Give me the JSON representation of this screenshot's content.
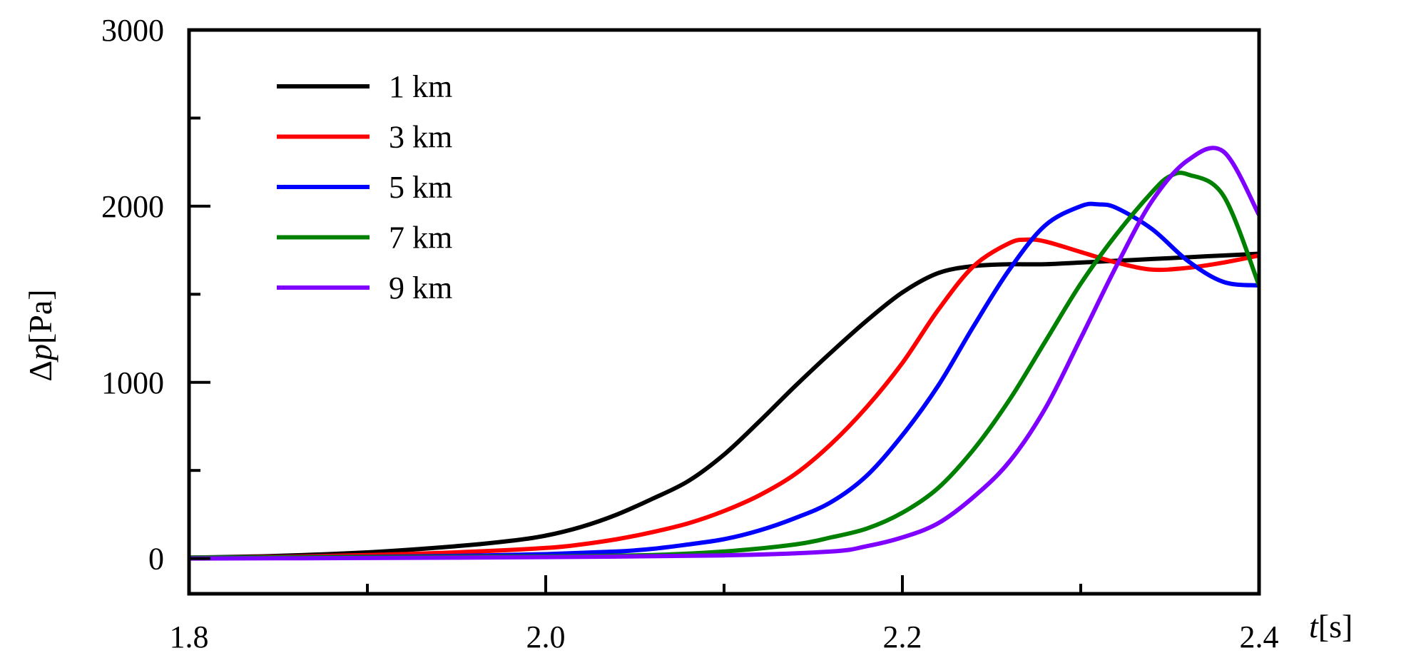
{
  "chart_data": {
    "type": "line",
    "title": "",
    "xlabel": {
      "symbol": "t",
      "unit": "[s]"
    },
    "ylabel": {
      "symbol": "p",
      "prefix": "Δ",
      "unit": "[Pa]"
    },
    "xlim": [
      1.8,
      2.4
    ],
    "ylim": [
      -200,
      3000
    ],
    "x_ticks": [
      {
        "value": 1.8,
        "label": "1.8"
      },
      {
        "value": 2.0,
        "label": "2.0"
      },
      {
        "value": 2.2,
        "label": "2.2"
      },
      {
        "value": 2.4,
        "label": "2.4"
      }
    ],
    "x_minor_ticks": [
      1.9,
      2.1,
      2.3
    ],
    "y_ticks": [
      {
        "value": 0,
        "label": "0"
      },
      {
        "value": 1000,
        "label": "1000"
      },
      {
        "value": 2000,
        "label": "2000"
      },
      {
        "value": 3000,
        "label": "3000"
      }
    ],
    "y_minor_ticks": [
      500,
      1500,
      2500
    ],
    "grid": false,
    "legend_position": "top-left",
    "series": [
      {
        "name": "1 km",
        "color": "#000000",
        "x": [
          1.8,
          1.85,
          1.9,
          1.95,
          1.98,
          2.0,
          2.02,
          2.04,
          2.06,
          2.08,
          2.1,
          2.12,
          2.14,
          2.16,
          2.18,
          2.2,
          2.22,
          2.24,
          2.26,
          2.28,
          2.3,
          2.32,
          2.34,
          2.36,
          2.38,
          2.4
        ],
        "y": [
          5,
          15,
          35,
          70,
          100,
          130,
          180,
          250,
          340,
          440,
          590,
          780,
          980,
          1170,
          1350,
          1510,
          1620,
          1660,
          1670,
          1670,
          1680,
          1690,
          1700,
          1710,
          1720,
          1730
        ]
      },
      {
        "name": "3 km",
        "color": "#ff0000",
        "x": [
          1.8,
          1.85,
          1.9,
          1.95,
          2.0,
          2.02,
          2.04,
          2.06,
          2.08,
          2.1,
          2.12,
          2.14,
          2.16,
          2.18,
          2.2,
          2.22,
          2.24,
          2.26,
          2.27,
          2.28,
          2.3,
          2.32,
          2.34,
          2.36,
          2.38,
          2.4
        ],
        "y": [
          5,
          10,
          20,
          35,
          60,
          80,
          110,
          150,
          200,
          270,
          360,
          480,
          650,
          860,
          1110,
          1410,
          1660,
          1790,
          1810,
          1800,
          1740,
          1680,
          1640,
          1650,
          1680,
          1720
        ]
      },
      {
        "name": "5 km",
        "color": "#0000ff",
        "x": [
          1.8,
          1.9,
          1.95,
          2.0,
          2.04,
          2.06,
          2.08,
          2.1,
          2.12,
          2.14,
          2.16,
          2.18,
          2.2,
          2.22,
          2.24,
          2.26,
          2.28,
          2.3,
          2.31,
          2.32,
          2.34,
          2.36,
          2.38,
          2.4
        ],
        "y": [
          5,
          10,
          15,
          25,
          40,
          55,
          80,
          110,
          160,
          230,
          320,
          470,
          700,
          980,
          1320,
          1640,
          1890,
          2000,
          2010,
          1990,
          1870,
          1690,
          1570,
          1550
        ]
      },
      {
        "name": "7 km",
        "color": "#008000",
        "x": [
          1.8,
          1.9,
          2.0,
          2.06,
          2.1,
          2.14,
          2.16,
          2.18,
          2.2,
          2.22,
          2.24,
          2.26,
          2.28,
          2.3,
          2.32,
          2.34,
          2.35,
          2.36,
          2.38,
          2.4
        ],
        "y": [
          5,
          8,
          12,
          20,
          40,
          80,
          120,
          170,
          260,
          400,
          620,
          900,
          1230,
          1560,
          1840,
          2080,
          2170,
          2180,
          2060,
          1550
        ]
      },
      {
        "name": "9 km",
        "color": "#8000ff",
        "x": [
          1.8,
          1.9,
          2.0,
          2.1,
          2.16,
          2.18,
          2.2,
          2.22,
          2.24,
          2.26,
          2.28,
          2.3,
          2.32,
          2.34,
          2.36,
          2.38,
          2.4
        ],
        "y": [
          0,
          3,
          8,
          18,
          40,
          70,
          120,
          200,
          350,
          550,
          850,
          1250,
          1660,
          2030,
          2260,
          2310,
          1950
        ]
      }
    ]
  }
}
